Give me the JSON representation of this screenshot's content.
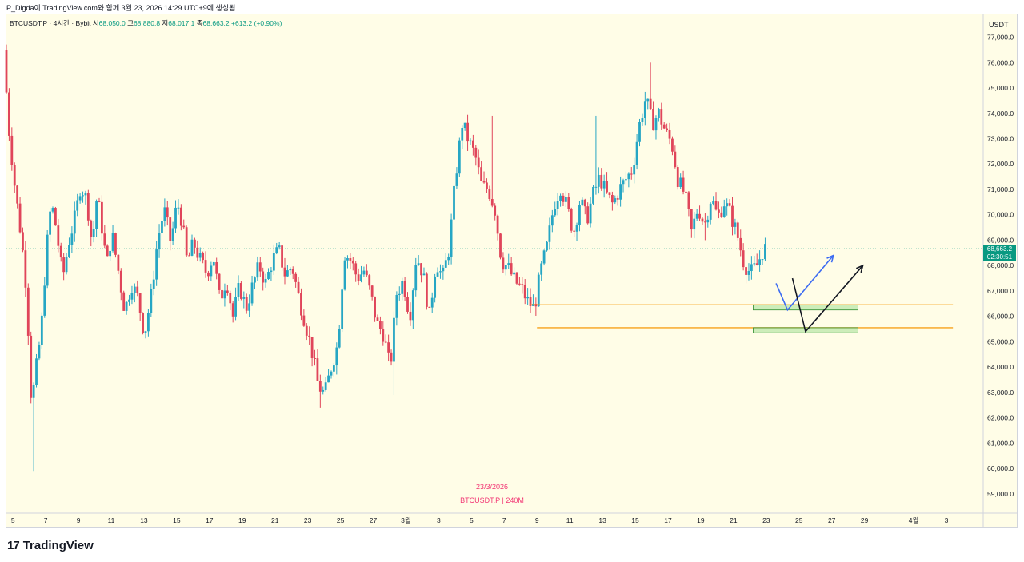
{
  "header_text": "P_Digda이 TradingView.com와 함께 3월 23, 2026 14:29 UTC+9에 생성됨",
  "legend": {
    "symbol": "BTCUSDT.P · 4시간 · Bybit",
    "open_label": "시",
    "open": "68,050.0",
    "high_label": "고",
    "high": "68,880.8",
    "low_label": "저",
    "low": "68,017.1",
    "close_label": "종",
    "close": "68,663.2",
    "change": "+613.2 (+0.90%)"
  },
  "currency": "USDT",
  "last_price": "68,663.2",
  "countdown": "02:30:51",
  "watermark_date": "23/3/2026",
  "watermark_symbol": "BTCUSDT.P | 240M",
  "brand": "TradingView",
  "colors": {
    "up": "#26a6c4",
    "down": "#e0455a",
    "orange": "#f7a21b",
    "green_zone": "#b8e6a6",
    "blue_arrow": "#3d6cf2",
    "black_arrow": "#131722",
    "price_line": "#089981"
  },
  "chart_data": {
    "type": "candlestick",
    "timeframe": "4h",
    "ylim": [
      58300,
      77900
    ],
    "y_ticks": [
      59000,
      60000,
      61000,
      62000,
      63000,
      64000,
      65000,
      66000,
      67000,
      68000,
      69000,
      70000,
      71000,
      72000,
      73000,
      74000,
      75000,
      76000,
      77000
    ],
    "y_tick_labels": [
      "59,000.0",
      "60,000.0",
      "61,000.0",
      "62,000.0",
      "63,000.0",
      "64,000.0",
      "65,000.0",
      "66,000.0",
      "67,000.0",
      "68,000.0",
      "69,000.0",
      "70,000.0",
      "71,000.0",
      "72,000.0",
      "73,000.0",
      "74,000.0",
      "75,000.0",
      "76,000.0",
      "77,000.0"
    ],
    "x_tick_labels": [
      "5",
      "7",
      "9",
      "11",
      "13",
      "15",
      "17",
      "19",
      "21",
      "23",
      "25",
      "27",
      "3월",
      "3",
      "5",
      "7",
      "9",
      "11",
      "13",
      "15",
      "17",
      "19",
      "21",
      "23",
      "25",
      "27",
      "29",
      "4월",
      "3"
    ],
    "x_tick_days": [
      5,
      7,
      9,
      11,
      13,
      15,
      17,
      19,
      21,
      23,
      25,
      27,
      29,
      31,
      33,
      35,
      37,
      39,
      41,
      43,
      45,
      47,
      49,
      51,
      53,
      55,
      57,
      60,
      62
    ],
    "x_domain_days": [
      4.6,
      64.2
    ],
    "price_path": [
      [
        4.6,
        76500
      ],
      [
        4.9,
        73500
      ],
      [
        5.3,
        71000
      ],
      [
        5.7,
        69000
      ],
      [
        6.0,
        67000
      ],
      [
        6.3,
        62500
      ],
      [
        6.6,
        64000
      ],
      [
        6.9,
        65500
      ],
      [
        7.2,
        68500
      ],
      [
        7.5,
        70500
      ],
      [
        7.8,
        69500
      ],
      [
        8.2,
        67500
      ],
      [
        8.6,
        69000
      ],
      [
        9.0,
        70000
      ],
      [
        9.3,
        71200
      ],
      [
        9.7,
        70500
      ],
      [
        10.0,
        68800
      ],
      [
        10.3,
        70800
      ],
      [
        10.6,
        69500
      ],
      [
        10.9,
        68000
      ],
      [
        11.2,
        69300
      ],
      [
        11.6,
        67800
      ],
      [
        12.0,
        66200
      ],
      [
        12.4,
        67300
      ],
      [
        12.8,
        66700
      ],
      [
        13.2,
        65300
      ],
      [
        13.6,
        66800
      ],
      [
        14.0,
        69000
      ],
      [
        14.4,
        70200
      ],
      [
        14.8,
        68900
      ],
      [
        15.2,
        70500
      ],
      [
        15.5,
        69700
      ],
      [
        15.8,
        68100
      ],
      [
        16.2,
        68900
      ],
      [
        16.6,
        68200
      ],
      [
        17.0,
        67700
      ],
      [
        17.4,
        68400
      ],
      [
        17.8,
        66600
      ],
      [
        18.2,
        67500
      ],
      [
        18.6,
        66000
      ],
      [
        19.0,
        67200
      ],
      [
        19.4,
        66300
      ],
      [
        19.8,
        67200
      ],
      [
        20.2,
        68000
      ],
      [
        20.6,
        67300
      ],
      [
        21.0,
        68200
      ],
      [
        21.4,
        68600
      ],
      [
        21.8,
        67600
      ],
      [
        22.2,
        68000
      ],
      [
        22.6,
        66800
      ],
      [
        23.0,
        65800
      ],
      [
        23.4,
        64700
      ],
      [
        23.8,
        63300
      ],
      [
        24.2,
        62900
      ],
      [
        24.6,
        64000
      ],
      [
        25.0,
        64900
      ],
      [
        25.4,
        68500
      ],
      [
        25.8,
        68200
      ],
      [
        26.2,
        67500
      ],
      [
        26.6,
        67800
      ],
      [
        27.0,
        66900
      ],
      [
        27.4,
        65700
      ],
      [
        27.8,
        65300
      ],
      [
        28.2,
        63900
      ],
      [
        28.6,
        66900
      ],
      [
        29.0,
        67400
      ],
      [
        29.4,
        66000
      ],
      [
        29.8,
        68400
      ],
      [
        30.2,
        67700
      ],
      [
        30.6,
        66000
      ],
      [
        31.0,
        68200
      ],
      [
        31.4,
        67500
      ],
      [
        31.8,
        68700
      ],
      [
        32.2,
        71500
      ],
      [
        32.6,
        73600
      ],
      [
        33.0,
        72900
      ],
      [
        33.4,
        72300
      ],
      [
        33.8,
        71100
      ],
      [
        34.2,
        71000
      ],
      [
        34.6,
        70200
      ],
      [
        35.0,
        68200
      ],
      [
        35.4,
        67900
      ],
      [
        35.8,
        67400
      ],
      [
        36.2,
        67100
      ],
      [
        36.6,
        66600
      ],
      [
        37.0,
        66300
      ],
      [
        37.4,
        67800
      ],
      [
        37.8,
        68800
      ],
      [
        38.2,
        70400
      ],
      [
        38.6,
        71100
      ],
      [
        39.0,
        70300
      ],
      [
        39.4,
        69300
      ],
      [
        39.8,
        70600
      ],
      [
        40.2,
        69800
      ],
      [
        40.6,
        70800
      ],
      [
        41.0,
        71500
      ],
      [
        41.4,
        70800
      ],
      [
        41.8,
        70400
      ],
      [
        42.2,
        71000
      ],
      [
        42.6,
        71400
      ],
      [
        43.0,
        71800
      ],
      [
        43.4,
        73500
      ],
      [
        43.8,
        74600
      ],
      [
        44.2,
        73600
      ],
      [
        44.6,
        74000
      ],
      [
        45.0,
        73300
      ],
      [
        45.4,
        72800
      ],
      [
        45.8,
        71300
      ],
      [
        46.2,
        70800
      ],
      [
        46.6,
        69300
      ],
      [
        47.0,
        70300
      ],
      [
        47.4,
        69600
      ],
      [
        47.8,
        70700
      ],
      [
        48.2,
        69900
      ],
      [
        48.6,
        70500
      ],
      [
        49.0,
        70000
      ],
      [
        49.4,
        69200
      ],
      [
        49.8,
        68100
      ],
      [
        50.2,
        67700
      ],
      [
        50.6,
        68000
      ],
      [
        51.0,
        68663
      ]
    ],
    "horizontal_lines": [
      {
        "price": 66450,
        "from_day": 36.6,
        "to_day": 62.4
      },
      {
        "price": 65550,
        "from_day": 37.0,
        "to_day": 62.4
      }
    ],
    "zones": [
      {
        "from_price": 66250,
        "to_price": 66450,
        "from_day": 50.2,
        "to_day": 56.6
      },
      {
        "from_price": 65350,
        "to_price": 65550,
        "from_day": 50.2,
        "to_day": 56.6
      }
    ],
    "blue_arrow": [
      [
        51.6,
        67300
      ],
      [
        52.3,
        66250
      ],
      [
        55.1,
        68400
      ]
    ],
    "black_arrow": [
      [
        52.6,
        67500
      ],
      [
        53.4,
        65400
      ],
      [
        56.9,
        68000
      ]
    ],
    "current_price": 68663.2
  }
}
